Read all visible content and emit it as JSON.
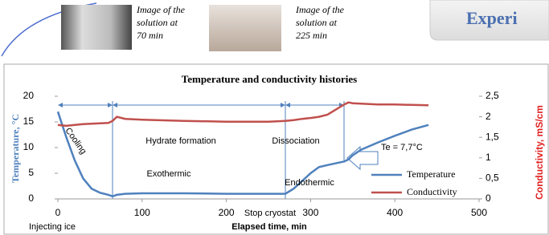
{
  "slide": {
    "heading": "Experi",
    "captions": [
      [
        "Image of the",
        "solution at",
        "70 min"
      ],
      [
        "Image of the",
        "solution at",
        "225 min"
      ]
    ]
  },
  "chart_data": {
    "type": "line",
    "title": "Temperature and conductivity histories",
    "xlabel": "Elapsed time, min",
    "ylabel": "Temperature, °C",
    "y2label": "Conductivity, mS/cm",
    "x": [
      0,
      10,
      20,
      30,
      40,
      50,
      60,
      65,
      70,
      80,
      100,
      150,
      200,
      250,
      270,
      280,
      290,
      300,
      310,
      320,
      340,
      345,
      350,
      360,
      380,
      400,
      420,
      440
    ],
    "series": [
      {
        "name": "Temperature",
        "color": "#4f81bd",
        "values": [
          17,
          12,
          7.5,
          4,
          2,
          1.2,
          0.8,
          0.5,
          0.8,
          1,
          1.1,
          1.1,
          1,
          1,
          1,
          2,
          3.5,
          5,
          6.2,
          6.6,
          7.3,
          7.7,
          8.5,
          9.6,
          11,
          12.3,
          13.5,
          14.4
        ]
      },
      {
        "name": "Conductivity",
        "color": "#c0504d",
        "axis": "y2",
        "values": [
          1.8,
          1.78,
          1.8,
          1.82,
          1.83,
          1.84,
          1.85,
          1.9,
          2.0,
          1.95,
          1.93,
          1.9,
          1.88,
          1.88,
          1.9,
          1.92,
          1.95,
          1.97,
          2.0,
          2.05,
          2.3,
          2.35,
          2.33,
          2.32,
          2.3,
          2.3,
          2.29,
          2.28
        ]
      }
    ],
    "xlim": [
      0,
      500
    ],
    "xticks": [
      0,
      100,
      200,
      300,
      400,
      500
    ],
    "ylim": [
      0,
      20
    ],
    "yticks": [
      0,
      5,
      10,
      15,
      20
    ],
    "y2lim": [
      0,
      2.5
    ],
    "y2ticks": [
      0,
      {
        "value": 0.5,
        "label": "0,5"
      },
      1,
      {
        "value": 1.5,
        "label": "1,5"
      },
      2,
      {
        "value": 2.5,
        "label": "2,5"
      }
    ],
    "annotations": [
      "Cooling",
      "Hydrate formation",
      "Dissociation",
      "Exothermic",
      "Endothermic",
      "Te = 7,7°C",
      "Injecting ice",
      "Stop cryostat"
    ],
    "legend": "lower right"
  }
}
